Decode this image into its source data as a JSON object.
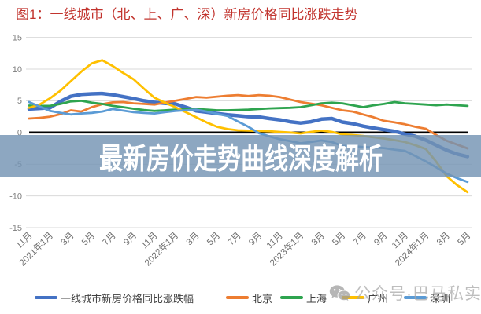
{
  "figure_title": "图1：一线城市（北、上、广、深）新房价格同比涨跌走势",
  "overlay": {
    "text": "最新房价走势曲线深度解析",
    "background_color": "#6E8FAF",
    "text_color": "#FFFFFF"
  },
  "watermark": {
    "icon": "wechat-icon",
    "text": "公众号·巴马私实",
    "color": "#9A9A9A"
  },
  "chart_data": {
    "type": "line",
    "title": "图1：一线城市（北、上、广、深）新房价格同比涨跌走势",
    "xlabel": "",
    "ylabel": "",
    "ylim": [
      -15,
      15
    ],
    "y_ticks": [
      15,
      10,
      5,
      0,
      -5,
      -10,
      -15
    ],
    "grid": "horizontal",
    "legend_position": "bottom",
    "x_tick_labels": [
      "11月",
      "2021年1月",
      "3月",
      "5月",
      "7月",
      "9月",
      "11月",
      "2022年1月",
      "3月",
      "5月",
      "7月",
      "9月",
      "11月",
      "2023年1月",
      "3月",
      "5月",
      "7月",
      "9月",
      "11月",
      "2024年1月",
      "3月",
      "5月"
    ],
    "points_per_tick": 2,
    "series": [
      {
        "name": "一线城市新房价格同比涨跌幅",
        "color": "#4472C4",
        "line_width": 4.5,
        "values": [
          3.7,
          3.8,
          3.9,
          4.9,
          5.7,
          6.0,
          6.1,
          6.15,
          5.95,
          5.65,
          5.35,
          5.0,
          4.75,
          4.6,
          4.5,
          4.0,
          3.4,
          3.2,
          3.0,
          2.8,
          2.65,
          2.5,
          2.45,
          2.2,
          2.0,
          1.7,
          1.5,
          1.7,
          2.1,
          2.2,
          1.65,
          1.4,
          1.0,
          0.7,
          0.45,
          0.2,
          -0.25,
          -0.6,
          -1.2,
          -2.0,
          -2.8,
          -3.4,
          -3.8
        ]
      },
      {
        "name": "北京",
        "color": "#ED7D31",
        "line_width": 2.8,
        "values": [
          2.2,
          2.3,
          2.5,
          2.9,
          3.5,
          3.3,
          4.0,
          4.45,
          4.75,
          4.8,
          4.6,
          4.5,
          4.4,
          4.7,
          5.0,
          5.3,
          5.6,
          5.5,
          5.65,
          5.8,
          5.9,
          5.75,
          5.9,
          5.8,
          5.6,
          5.2,
          4.8,
          4.55,
          4.3,
          3.9,
          3.5,
          3.3,
          2.85,
          2.4,
          1.85,
          1.6,
          1.3,
          0.9,
          0.6,
          -0.4,
          -1.3,
          -1.9,
          -2.5
        ]
      },
      {
        "name": "上海",
        "color": "#2EA44F",
        "line_width": 2.8,
        "values": [
          4.25,
          4.2,
          4.2,
          4.5,
          4.9,
          5.0,
          4.7,
          4.5,
          4.2,
          4.0,
          3.75,
          3.55,
          3.4,
          3.5,
          3.6,
          3.65,
          3.7,
          3.6,
          3.5,
          3.5,
          3.55,
          3.6,
          3.7,
          3.8,
          3.85,
          3.9,
          4.0,
          4.3,
          4.6,
          4.7,
          4.6,
          4.3,
          4.0,
          4.3,
          4.5,
          4.8,
          4.6,
          4.5,
          4.4,
          4.3,
          4.4,
          4.3,
          4.2
        ]
      },
      {
        "name": "广州",
        "color": "#FFC000",
        "line_width": 2.8,
        "values": [
          3.9,
          4.4,
          5.4,
          6.6,
          8.1,
          9.6,
          10.9,
          11.4,
          10.5,
          9.4,
          8.4,
          6.9,
          5.5,
          4.7,
          4.0,
          3.2,
          2.4,
          1.6,
          0.9,
          0.55,
          0.35,
          0.3,
          0.25,
          0.2,
          0.1,
          0.0,
          -0.15,
          0.1,
          0.3,
          0.1,
          -0.3,
          -0.4,
          -0.55,
          -0.75,
          -0.95,
          -1.2,
          -1.5,
          -2.0,
          -2.6,
          -4.6,
          -6.9,
          -8.3,
          -9.4
        ]
      },
      {
        "name": "深圳",
        "color": "#5B9BD5",
        "line_width": 2.8,
        "values": [
          4.8,
          4.1,
          3.4,
          3.1,
          2.85,
          3.0,
          3.1,
          3.3,
          3.7,
          3.45,
          3.2,
          3.1,
          3.0,
          3.2,
          3.4,
          3.5,
          3.6,
          3.3,
          2.95,
          2.6,
          1.75,
          0.9,
          -0.1,
          -0.6,
          -1.05,
          -1.35,
          -1.7,
          -1.5,
          -1.25,
          -1.5,
          -2.1,
          -2.15,
          -2.3,
          -2.35,
          -2.45,
          -2.7,
          -2.9,
          -3.7,
          -4.55,
          -5.5,
          -6.5,
          -7.2,
          -7.8
        ]
      }
    ]
  }
}
